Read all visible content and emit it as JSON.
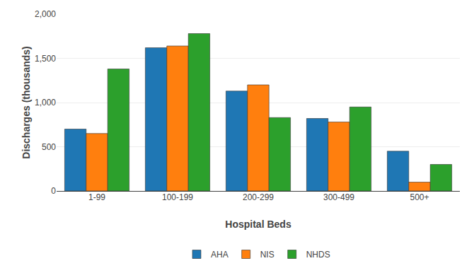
{
  "chart_data": {
    "type": "bar",
    "categories": [
      "1-99",
      "100-199",
      "200-299",
      "300-499",
      "500+"
    ],
    "series": [
      {
        "name": "AHA",
        "values": [
          700,
          1620,
          1130,
          820,
          450
        ]
      },
      {
        "name": "NIS",
        "values": [
          650,
          1640,
          1200,
          780,
          100
        ]
      },
      {
        "name": "NHDS",
        "values": [
          1380,
          1780,
          830,
          950,
          300
        ]
      }
    ],
    "xlabel": "Hospital Beds",
    "ylabel": "Discharges (thousands)",
    "ylim": [
      0,
      2000
    ],
    "yticks": [
      0,
      500,
      {
        "value": 1000,
        "label": "1,000"
      },
      {
        "value": 1500,
        "label": "1,500"
      },
      {
        "value": 2000,
        "label": "2,000"
      }
    ],
    "grid": true,
    "legend": "bottom"
  }
}
